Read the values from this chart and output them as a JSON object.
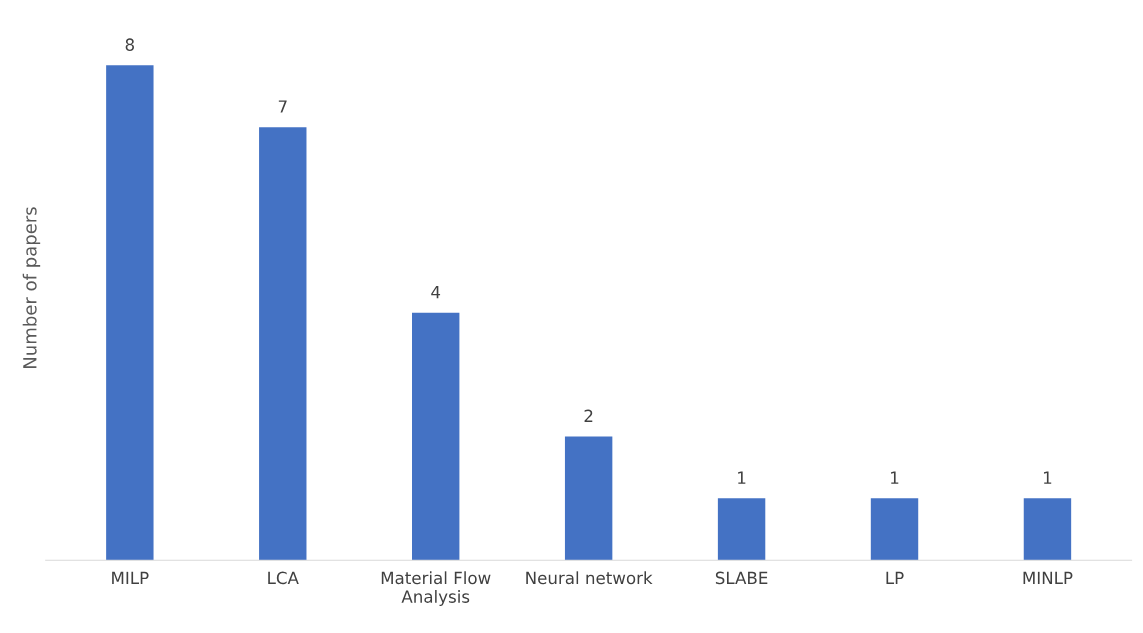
{
  "chart_data": {
    "type": "bar",
    "ylabel": "Number of papers",
    "categories": [
      "MILP",
      "LCA",
      "Material Flow\nAnalysis",
      "Neural network",
      "SLABE",
      "LP",
      "MINLP"
    ],
    "values": [
      8,
      7,
      4,
      2,
      1,
      1,
      1
    ],
    "color": "#4472c4",
    "data_labels": true,
    "grid": false,
    "legend": false
  }
}
